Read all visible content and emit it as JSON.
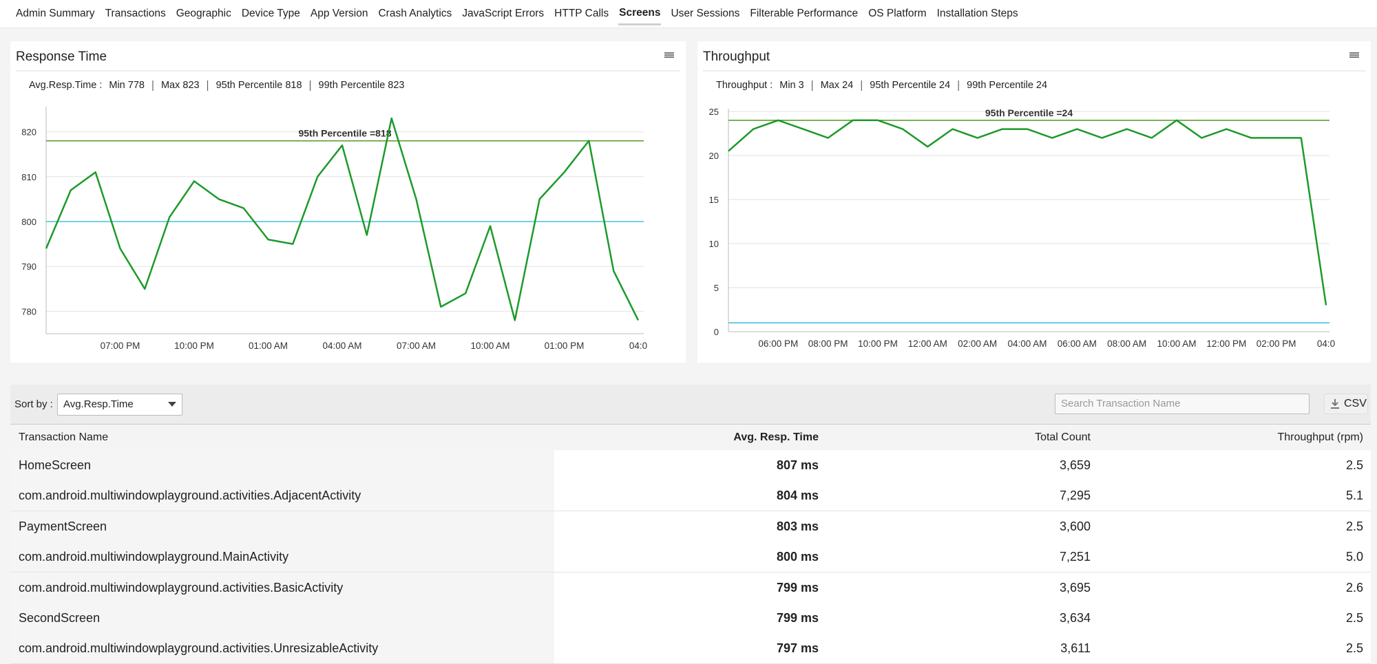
{
  "tabs": [
    "Admin Summary",
    "Transactions",
    "Geographic",
    "Device Type",
    "App Version",
    "Crash Analytics",
    "JavaScript Errors",
    "HTTP Calls",
    "Screens",
    "User Sessions",
    "Filterable Performance",
    "OS Platform",
    "Installation Steps"
  ],
  "active_tab": 8,
  "chart_data": [
    {
      "type": "line",
      "title": "Response Time",
      "stats_label": "Avg.Resp.Time :",
      "stats": [
        "Min 778",
        "Max 823",
        "95th Percentile 818",
        "99th Percentile 823"
      ],
      "categories": [
        null,
        null,
        null,
        "07:00 PM",
        null,
        null,
        "10:00 PM",
        null,
        null,
        "01:00 AM",
        null,
        null,
        "04:00 AM",
        null,
        null,
        "07:00 AM",
        null,
        null,
        "10:00 AM",
        null,
        null,
        "01:00 PM",
        null,
        null,
        "04:0"
      ],
      "values": [
        794,
        807,
        811,
        794,
        785,
        801,
        809,
        805,
        803,
        796,
        795,
        810,
        817,
        797,
        823,
        805,
        781,
        784,
        799,
        778,
        805,
        811,
        818,
        789,
        778
      ],
      "color": "#1c9a2a",
      "ylim": [
        775,
        825
      ],
      "yticks": [
        780,
        790,
        800,
        810,
        820
      ],
      "grid": true,
      "reference_lines": [
        {
          "value": 818,
          "color": "#5a9e2e",
          "label": "95th Percentile =818"
        },
        {
          "value": 800,
          "color": "#45c3de"
        }
      ]
    },
    {
      "type": "line",
      "title": "Throughput",
      "stats_label": "Throughput :",
      "stats": [
        "Min 3",
        "Max 24",
        "95th Percentile 24",
        "99th Percentile 24"
      ],
      "categories": [
        null,
        null,
        "06:00 PM",
        null,
        "08:00 PM",
        null,
        "10:00 PM",
        null,
        "12:00 AM",
        null,
        "02:00 AM",
        null,
        "04:00 AM",
        null,
        "06:00 AM",
        null,
        "08:00 AM",
        null,
        "10:00 AM",
        null,
        "12:00 PM",
        null,
        "02:00 PM",
        null,
        "04:0"
      ],
      "values": [
        20.5,
        23,
        24,
        23,
        22,
        24,
        24,
        23,
        21,
        23,
        22,
        23,
        23,
        22,
        23,
        22,
        23,
        22,
        24,
        22,
        23,
        22,
        22,
        22,
        3
      ],
      "color": "#1c9a2a",
      "ylim": [
        0,
        25
      ],
      "yticks": [
        0,
        5,
        10,
        15,
        20,
        25
      ],
      "grid": true,
      "reference_lines": [
        {
          "value": 24,
          "color": "#5a9e2e",
          "label": "95th Percentile =24"
        },
        {
          "value": 1,
          "color": "#45c3de"
        }
      ]
    }
  ],
  "toolbar": {
    "sort_label": "Sort by :",
    "sort_value": "Avg.Resp.Time",
    "search_placeholder": "Search Transaction Name",
    "export": "CSV"
  },
  "table": {
    "columns": [
      "Transaction Name",
      "Avg. Resp. Time",
      "Total Count",
      "Throughput (rpm)"
    ],
    "rows": [
      [
        "HomeScreen",
        "807 ms",
        "3,659",
        "2.5"
      ],
      [
        "com.android.multiwindowplayground.activities.AdjacentActivity",
        "804 ms",
        "7,295",
        "5.1"
      ],
      [
        "PaymentScreen",
        "803 ms",
        "3,600",
        "2.5"
      ],
      [
        "com.android.multiwindowplayground.MainActivity",
        "800 ms",
        "7,251",
        "5.0"
      ],
      [
        "com.android.multiwindowplayground.activities.BasicActivity",
        "799 ms",
        "3,695",
        "2.6"
      ],
      [
        "SecondScreen",
        "799 ms",
        "3,634",
        "2.5"
      ],
      [
        "com.android.multiwindowplayground.activities.UnresizableActivity",
        "797 ms",
        "3,611",
        "2.5"
      ]
    ]
  }
}
